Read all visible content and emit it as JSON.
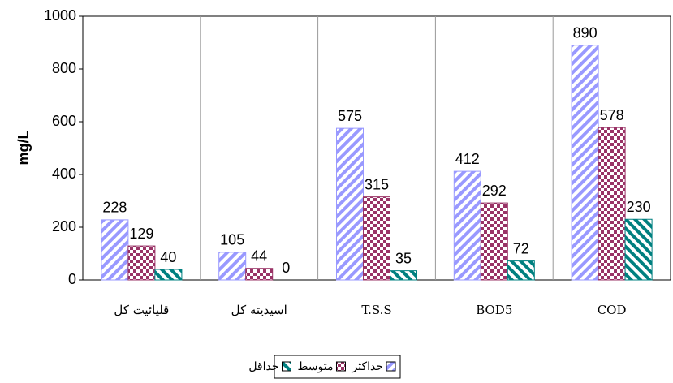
{
  "chart_data": {
    "type": "bar",
    "y_label": "mg/L",
    "categories": [
      "قلیائیت کل",
      "اسیدیته کل",
      "T.S.S",
      "BOD5",
      "COD"
    ],
    "series": [
      {
        "name": "حداکثر",
        "color": "#9999ff",
        "pattern": "diagonal",
        "values": [
          228,
          105,
          575,
          412,
          890
        ]
      },
      {
        "name": "متوسط",
        "color": "#993366",
        "pattern": "checker",
        "values": [
          129,
          44,
          315,
          292,
          578
        ]
      },
      {
        "name": "حداقل",
        "color": "#008080",
        "pattern": "diagonal-reverse",
        "values": [
          40,
          0,
          35,
          72,
          230
        ]
      }
    ],
    "ylim": [
      0,
      1000
    ],
    "yticks": [
      0,
      200,
      400,
      600,
      800,
      1000
    ],
    "grid": false
  }
}
